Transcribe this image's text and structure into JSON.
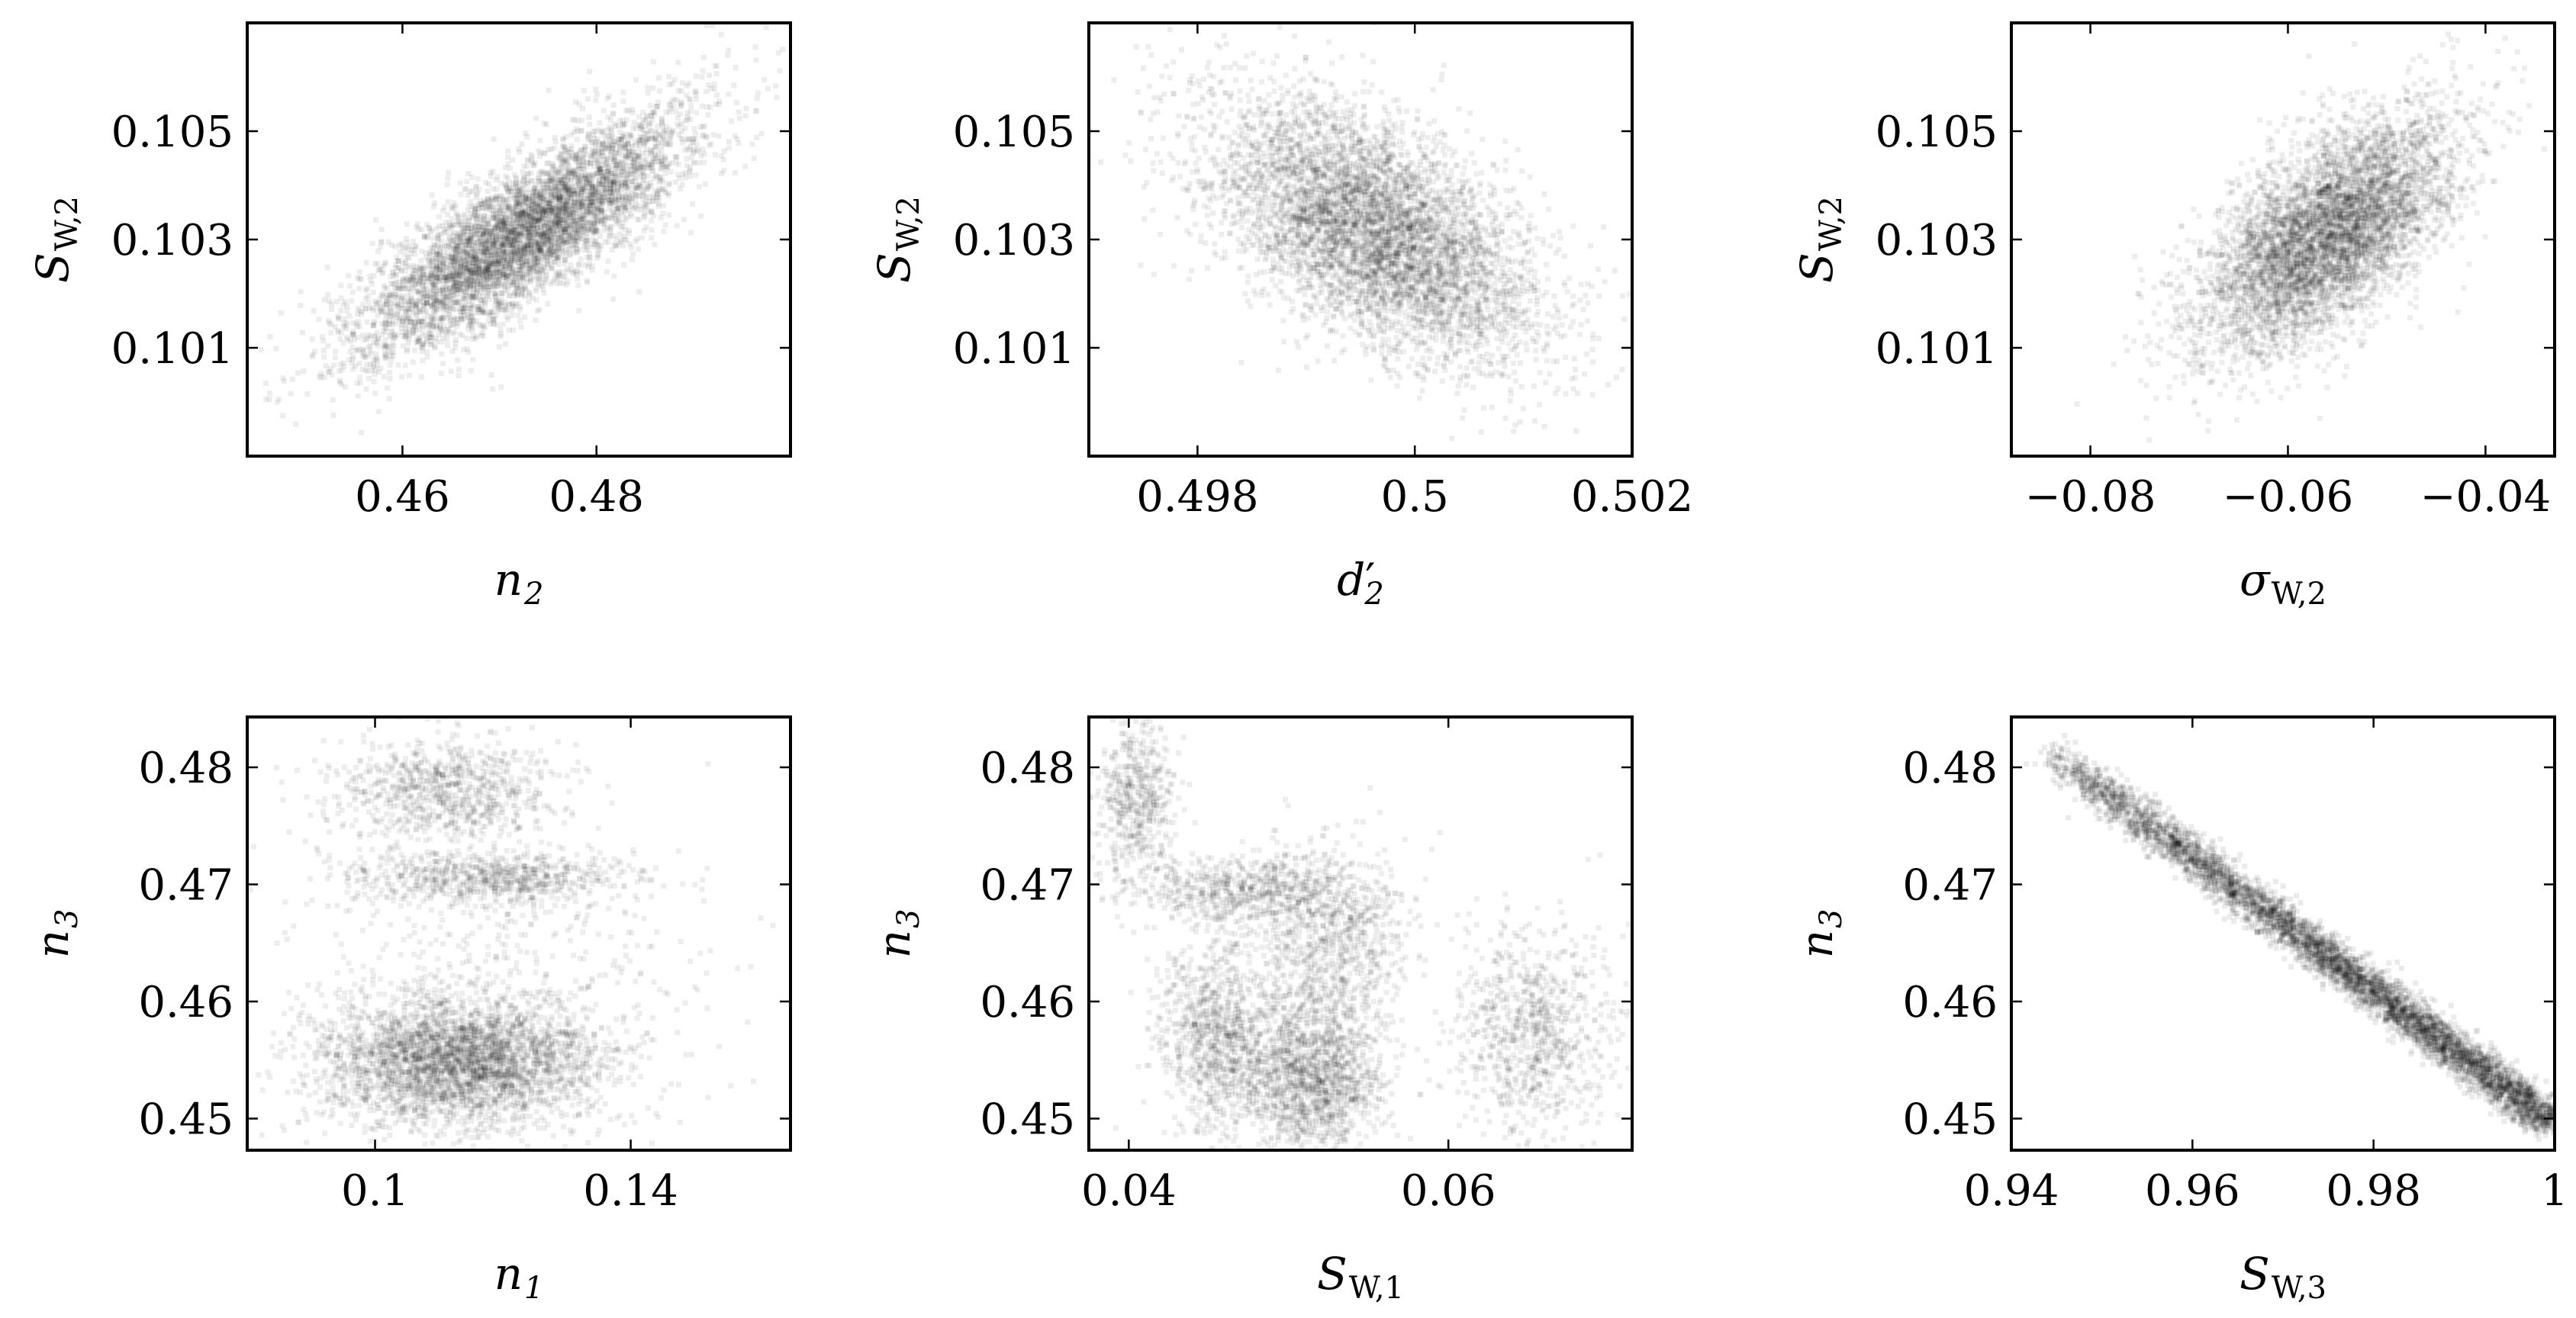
{
  "chart_data": [
    {
      "type": "heatmap",
      "subtype": "2d-histogram",
      "xlabel": {
        "main": "n",
        "sub": "2",
        "prime": false,
        "upright_sub": false
      },
      "ylabel": {
        "main": "S",
        "sub": "W,2",
        "prime": false,
        "upright_sub": true
      },
      "xlim": [
        0.444,
        0.5
      ],
      "ylim": [
        0.099,
        0.107
      ],
      "xticks": [
        0.46,
        0.48
      ],
      "xtick_labels": [
        "0.46",
        "0.48"
      ],
      "yticks": [
        0.101,
        0.103,
        0.105
      ],
      "ytick_labels": [
        "0.101",
        "0.103",
        "0.105"
      ],
      "distribution": {
        "clusters": [
          {
            "cx": 0.4725,
            "cy": 0.1031,
            "sx": 0.0085,
            "sy": 0.0011,
            "rho": 0.82,
            "weight": 1.0
          }
        ]
      },
      "grid": false
    },
    {
      "type": "heatmap",
      "subtype": "2d-histogram",
      "xlabel": {
        "main": "d",
        "sub": "2",
        "prime": true,
        "upright_sub": false
      },
      "ylabel": {
        "main": "S",
        "sub": "W,2",
        "prime": false,
        "upright_sub": true
      },
      "xlim": [
        0.497,
        0.502
      ],
      "ylim": [
        0.099,
        0.107
      ],
      "xticks": [
        0.498,
        0.5,
        0.502
      ],
      "xtick_labels": [
        "0.498",
        "0.5",
        "0.502"
      ],
      "yticks": [
        0.101,
        0.103,
        0.105
      ],
      "ytick_labels": [
        "0.101",
        "0.103",
        "0.105"
      ],
      "distribution": {
        "clusters": [
          {
            "cx": 0.4996,
            "cy": 0.1032,
            "sx": 0.00075,
            "sy": 0.0012,
            "rho": -0.55,
            "weight": 1.0
          }
        ]
      },
      "grid": false
    },
    {
      "type": "heatmap",
      "subtype": "2d-histogram",
      "xlabel": {
        "main": "σ",
        "sub": "W,2",
        "prime": false,
        "upright_sub": true
      },
      "ylabel": {
        "main": "S",
        "sub": "W,2",
        "prime": false,
        "upright_sub": true
      },
      "xlim": [
        -0.088,
        -0.033
      ],
      "ylim": [
        0.099,
        0.107
      ],
      "xticks": [
        -0.08,
        -0.06,
        -0.04
      ],
      "xtick_labels": [
        "−0.08",
        "−0.06",
        "−0.04"
      ],
      "yticks": [
        0.101,
        0.103,
        0.105
      ],
      "ytick_labels": [
        "0.101",
        "0.103",
        "0.105"
      ],
      "distribution": {
        "clusters": [
          {
            "cx": -0.056,
            "cy": 0.1031,
            "sx": 0.0065,
            "sy": 0.0011,
            "rho": 0.62,
            "weight": 1.0
          }
        ]
      },
      "grid": false
    },
    {
      "type": "heatmap",
      "subtype": "2d-histogram",
      "xlabel": {
        "main": "n",
        "sub": "1",
        "prime": false,
        "upright_sub": false
      },
      "ylabel": {
        "main": "n",
        "sub": "3",
        "prime": false,
        "upright_sub": false
      },
      "xlim": [
        0.08,
        0.165
      ],
      "ylim": [
        0.4473,
        0.4843
      ],
      "xticks": [
        0.1,
        0.14
      ],
      "xtick_labels": [
        "0.1",
        "0.14"
      ],
      "yticks": [
        0.45,
        0.46,
        0.47,
        0.48
      ],
      "ytick_labels": [
        "0.45",
        "0.46",
        "0.47",
        "0.48"
      ],
      "distribution": {
        "clusters": [
          {
            "cx": 0.113,
            "cy": 0.455,
            "sx": 0.011,
            "sy": 0.0028,
            "rho": 0.0,
            "weight": 0.62
          },
          {
            "cx": 0.118,
            "cy": 0.4705,
            "sx": 0.011,
            "sy": 0.0012,
            "rho": 0.0,
            "weight": 0.14
          },
          {
            "cx": 0.111,
            "cy": 0.478,
            "sx": 0.009,
            "sy": 0.0022,
            "rho": 0.0,
            "weight": 0.16
          },
          {
            "cx": 0.12,
            "cy": 0.463,
            "sx": 0.018,
            "sy": 0.006,
            "rho": 0.0,
            "weight": 0.08
          }
        ]
      },
      "grid": false
    },
    {
      "type": "heatmap",
      "subtype": "2d-histogram",
      "xlabel": {
        "main": "S",
        "sub": "W,1",
        "prime": false,
        "upright_sub": true
      },
      "ylabel": {
        "main": "n",
        "sub": "3",
        "prime": false,
        "upright_sub": false
      },
      "xlim": [
        0.0375,
        0.0715
      ],
      "ylim": [
        0.4473,
        0.4843
      ],
      "xticks": [
        0.04,
        0.06
      ],
      "xtick_labels": [
        "0.04",
        "0.06"
      ],
      "yticks": [
        0.45,
        0.46,
        0.47,
        0.48
      ],
      "ytick_labels": [
        "0.45",
        "0.46",
        "0.47",
        "0.48"
      ],
      "distribution": {
        "clusters": [
          {
            "cx": 0.0405,
            "cy": 0.4775,
            "sx": 0.0012,
            "sy": 0.0035,
            "rho": 0.0,
            "weight": 0.1
          },
          {
            "cx": 0.0455,
            "cy": 0.457,
            "sx": 0.0018,
            "sy": 0.004,
            "rho": 0.0,
            "weight": 0.18
          },
          {
            "cx": 0.0515,
            "cy": 0.4535,
            "sx": 0.0022,
            "sy": 0.0035,
            "rho": 0.0,
            "weight": 0.28
          },
          {
            "cx": 0.0525,
            "cy": 0.465,
            "sx": 0.0025,
            "sy": 0.004,
            "rho": 0.0,
            "weight": 0.16
          },
          {
            "cx": 0.0652,
            "cy": 0.4575,
            "sx": 0.0025,
            "sy": 0.0045,
            "rho": 0.0,
            "weight": 0.16
          },
          {
            "cx": 0.0475,
            "cy": 0.4695,
            "sx": 0.0035,
            "sy": 0.0015,
            "rho": 0.0,
            "weight": 0.12
          }
        ]
      },
      "grid": false
    },
    {
      "type": "heatmap",
      "subtype": "2d-histogram",
      "xlabel": {
        "main": "S",
        "sub": "W,3",
        "prime": false,
        "upright_sub": true
      },
      "ylabel": {
        "main": "n",
        "sub": "3",
        "prime": false,
        "upright_sub": false
      },
      "xlim": [
        0.94,
        1.0
      ],
      "ylim": [
        0.4473,
        0.4843
      ],
      "xticks": [
        0.94,
        0.96,
        0.98,
        1.0
      ],
      "xtick_labels": [
        "0.94",
        "0.96",
        "0.98",
        "1"
      ],
      "yticks": [
        0.45,
        0.46,
        0.47,
        0.48
      ],
      "ytick_labels": [
        "0.45",
        "0.46",
        "0.47",
        "0.48"
      ],
      "distribution": {
        "line": {
          "x0": 0.944,
          "y0": 0.4815,
          "x1": 1.0,
          "y1": 0.4495,
          "width": 0.0009,
          "density": [
            0.35,
            0.55,
            0.75,
            1.0
          ]
        }
      },
      "grid": false
    }
  ]
}
